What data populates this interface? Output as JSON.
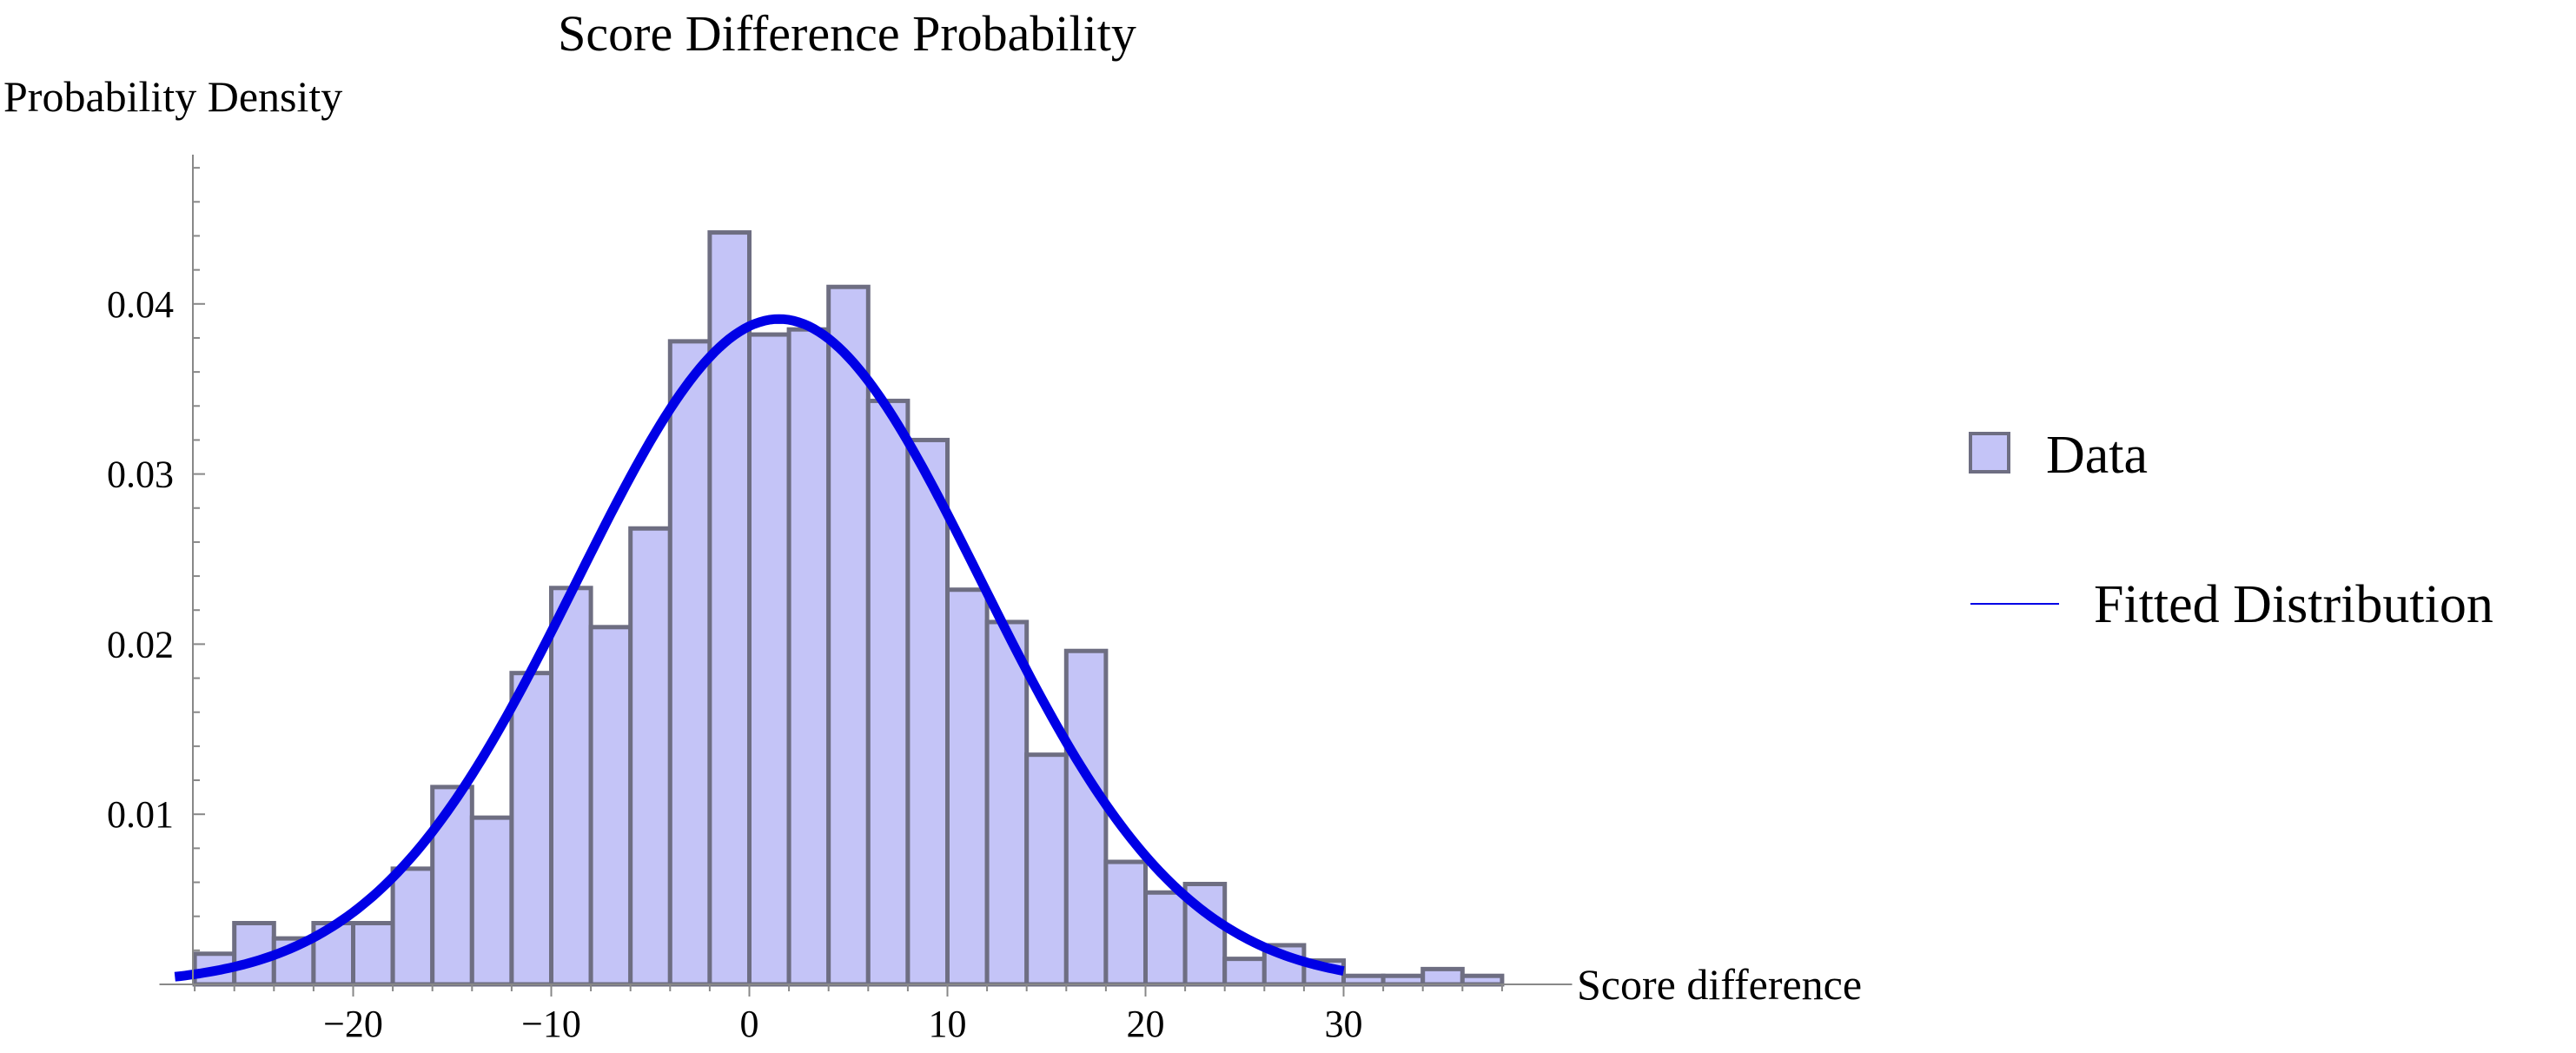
{
  "chart_data": {
    "type": "bar",
    "title": "Score Difference Probability",
    "xlabel": "Score difference",
    "ylabel": "Probability Density",
    "bin_width": 2,
    "bin_edges_start": -28,
    "values": [
      0.0018,
      0.0036,
      0.0027,
      0.0036,
      0.0036,
      0.0068,
      0.0116,
      0.0098,
      0.0183,
      0.0233,
      0.021,
      0.0268,
      0.0378,
      0.0442,
      0.0382,
      0.0385,
      0.041,
      0.0343,
      0.032,
      0.0232,
      0.0213,
      0.0135,
      0.0196,
      0.0072,
      0.0054,
      0.0059,
      0.0015,
      0.0023,
      0.0014,
      0.0005,
      0.0005,
      0.0009,
      0.0005
    ],
    "fitted_distribution": {
      "family": "normal",
      "mean": 1.5,
      "sd": 10.2,
      "x_range": [
        -29,
        30
      ]
    },
    "xlim": [
      -30,
      40
    ],
    "ylim": [
      0,
      0.048
    ],
    "xticks": [
      -20,
      -10,
      0,
      10,
      20,
      30
    ],
    "xtick_labels": [
      "−20",
      "−10",
      "0",
      "10",
      "20",
      "30"
    ],
    "yticks": [
      0.01,
      0.02,
      0.03,
      0.04
    ],
    "ytick_labels": [
      "0.01",
      "0.02",
      "0.03",
      "0.04"
    ],
    "grid": false,
    "legend_position": "right",
    "legend": [
      {
        "label": "Data",
        "kind": "bar-swatch"
      },
      {
        "label": "Fitted Distribution",
        "kind": "line"
      }
    ],
    "colors": {
      "bar_fill": "#c4c4f7",
      "bar_edge": "#6e6e82",
      "curve": "#0000e6",
      "axis": "#888888"
    }
  }
}
